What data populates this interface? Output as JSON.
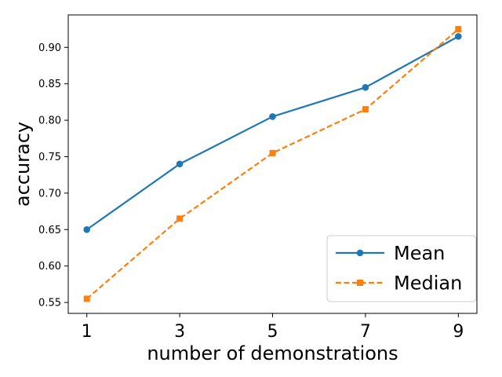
{
  "chart_data": {
    "type": "line",
    "title": "",
    "xlabel": "number of demonstrations",
    "ylabel": "accuracy",
    "x": [
      1,
      3,
      5,
      7,
      9
    ],
    "xlim": [
      0.6,
      9.4
    ],
    "ylim": [
      0.535,
      0.9445
    ],
    "yticks": [
      0.55,
      0.6,
      0.65,
      0.7,
      0.75,
      0.8,
      0.85,
      0.9
    ],
    "ytick_labels": [
      "0.55",
      "0.60",
      "0.65",
      "0.70",
      "0.75",
      "0.80",
      "0.85",
      "0.90"
    ],
    "xtick_labels": [
      "1",
      "3",
      "5",
      "7",
      "9"
    ],
    "grid": false,
    "legend_position": "bottom-right",
    "series": [
      {
        "name": "Mean",
        "values": [
          0.65,
          0.74,
          0.805,
          0.845,
          0.915
        ],
        "color": "#1f77b4",
        "linestyle": "solid",
        "marker": "circle"
      },
      {
        "name": "Median",
        "values": [
          0.555,
          0.665,
          0.755,
          0.815,
          0.925
        ],
        "color": "#ff7f0e",
        "linestyle": "dashed",
        "marker": "square"
      }
    ]
  }
}
